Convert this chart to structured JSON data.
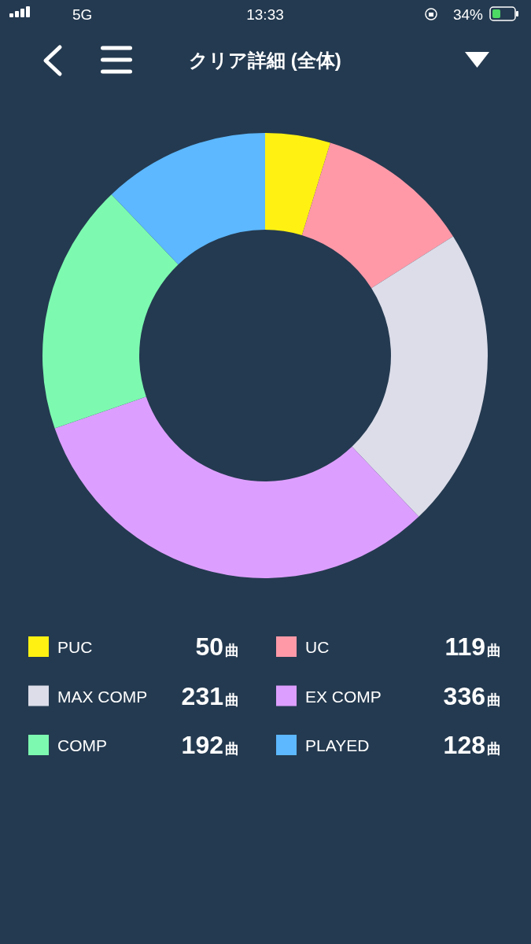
{
  "chart_data": {
    "type": "donut",
    "title": "クリア詳細 (全体)",
    "categories": [
      "PUC",
      "UC",
      "MAX COMP",
      "EX COMP",
      "COMP",
      "PLAYED"
    ],
    "values": [
      50,
      119,
      231,
      336,
      192,
      128
    ],
    "colors": [
      "#fff212",
      "#ff99a8",
      "#dcdde9",
      "#dd9fff",
      "#7dfab0",
      "#5db8ff"
    ],
    "value_labels": [
      "50曲",
      "119曲",
      "231曲",
      "336曲",
      "192曲",
      "128曲"
    ],
    "legend": "bottom",
    "annotations": [
      "5G",
      "13:33",
      "34%"
    ]
  }
}
